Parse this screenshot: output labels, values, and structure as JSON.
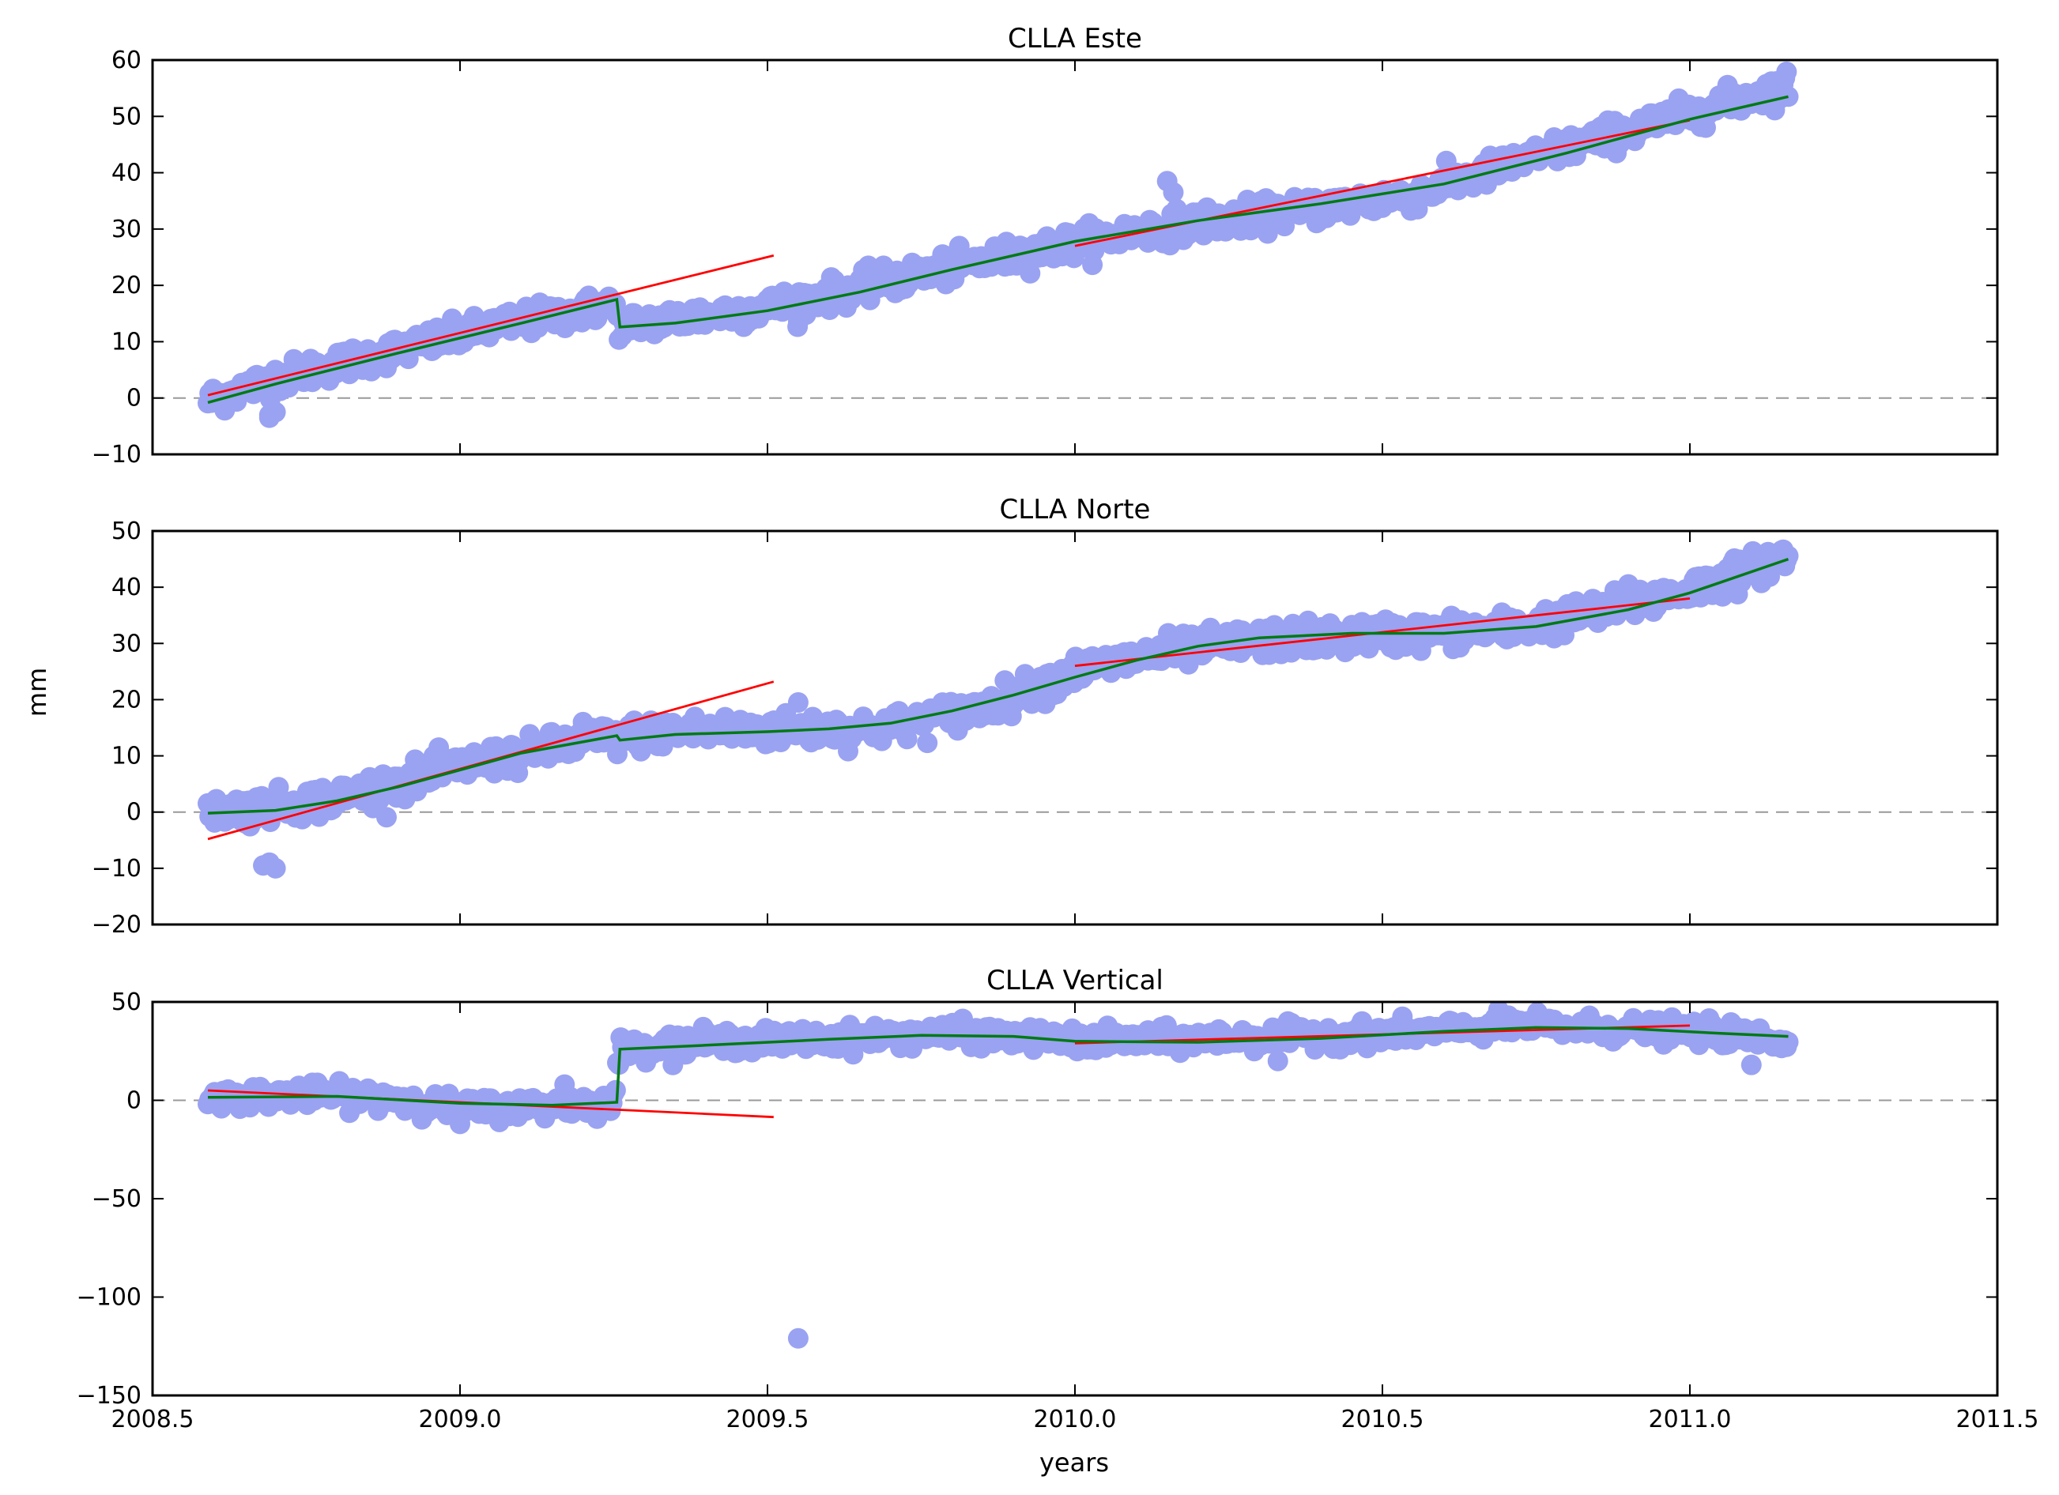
{
  "figure": {
    "xlabel": "years",
    "ylabel": "mm"
  },
  "colors": {
    "observations": "#9aa2f2",
    "linear_fit": "#ff0000",
    "smooth_fit": "#007a12",
    "zero_line": "#999999",
    "axes": "#000000"
  },
  "chart_data": [
    {
      "type": "scatter",
      "title": "CLLA Este",
      "xlabel": "",
      "ylabel": "",
      "xlim": [
        2008.5,
        2011.5
      ],
      "ylim": [
        -10,
        60
      ],
      "xticks": [
        2008.5,
        2009.0,
        2009.5,
        2010.0,
        2010.5,
        2011.0,
        2011.5
      ],
      "xtick_labels_visible": false,
      "yticks": [
        -10,
        0,
        10,
        20,
        30,
        40,
        50,
        60
      ],
      "ytick_labels": [
        "−10",
        "0",
        "10",
        "20",
        "30",
        "40",
        "50",
        "60"
      ],
      "zero_line": true,
      "grid": false,
      "observations": {
        "trend": [
          [
            2008.59,
            -0.5
          ],
          [
            2008.7,
            3.5
          ],
          [
            2008.9,
            8.5
          ],
          [
            2009.05,
            12.5
          ],
          [
            2009.25,
            16.5
          ],
          [
            2009.26,
            12.8
          ],
          [
            2009.5,
            16.0
          ],
          [
            2009.75,
            22.0
          ],
          [
            2010.0,
            27.5
          ],
          [
            2010.15,
            30.5
          ],
          [
            2010.35,
            33.0
          ],
          [
            2010.55,
            36.0
          ],
          [
            2010.8,
            44.5
          ],
          [
            2011.0,
            50.5
          ],
          [
            2011.16,
            55.5
          ]
        ],
        "scatter_mm": 1.3,
        "outliers": [
          [
            2008.69,
            -3.5
          ],
          [
            2008.7,
            -2.5
          ],
          [
            2008.69,
            -3.0
          ],
          [
            2010.15,
            38.5
          ],
          [
            2010.16,
            36.5
          ],
          [
            2009.55,
            13.5
          ]
        ]
      },
      "fits": [
        {
          "kind": "linear",
          "color": "red",
          "points": [
            [
              2008.59,
              0.5
            ],
            [
              2009.51,
              25.3
            ]
          ]
        },
        {
          "kind": "linear",
          "color": "red",
          "points": [
            [
              2010.0,
              27.0
            ],
            [
              2011.0,
              49.3
            ]
          ]
        },
        {
          "kind": "smooth",
          "color": "green",
          "points": [
            [
              2008.59,
              -0.8
            ],
            [
              2008.7,
              2.5
            ],
            [
              2008.9,
              8.0
            ],
            [
              2009.1,
              13.3
            ],
            [
              2009.255,
              17.5
            ],
            [
              2009.26,
              12.6
            ],
            [
              2009.35,
              13.3
            ],
            [
              2009.5,
              15.5
            ],
            [
              2009.65,
              18.8
            ],
            [
              2009.8,
              22.8
            ],
            [
              2010.0,
              27.8
            ],
            [
              2010.2,
              31.5
            ],
            [
              2010.4,
              34.5
            ],
            [
              2010.6,
              38.0
            ],
            [
              2010.8,
              43.5
            ],
            [
              2011.0,
              49.5
            ],
            [
              2011.16,
              53.5
            ]
          ]
        }
      ]
    },
    {
      "type": "scatter",
      "title": "CLLA Norte",
      "xlabel": "",
      "ylabel": "",
      "xlim": [
        2008.5,
        2011.5
      ],
      "ylim": [
        -20,
        50
      ],
      "xticks": [
        2008.5,
        2009.0,
        2009.5,
        2010.0,
        2010.5,
        2011.0,
        2011.5
      ],
      "xtick_labels_visible": false,
      "yticks": [
        -20,
        -10,
        0,
        10,
        20,
        30,
        40,
        50
      ],
      "ytick_labels": [
        "−20",
        "−10",
        "0",
        "10",
        "20",
        "30",
        "40",
        "50"
      ],
      "zero_line": true,
      "grid": false,
      "observations": {
        "trend": [
          [
            2008.59,
            0.0
          ],
          [
            2008.7,
            1.0
          ],
          [
            2008.8,
            2.5
          ],
          [
            2009.0,
            8.0
          ],
          [
            2009.2,
            12.5
          ],
          [
            2009.35,
            14.5
          ],
          [
            2009.5,
            14.5
          ],
          [
            2009.7,
            15.0
          ],
          [
            2009.85,
            18.5
          ],
          [
            2010.0,
            25.0
          ],
          [
            2010.15,
            28.5
          ],
          [
            2010.3,
            30.5
          ],
          [
            2010.5,
            31.5
          ],
          [
            2010.7,
            32.5
          ],
          [
            2010.85,
            35.5
          ],
          [
            2011.0,
            39.5
          ],
          [
            2011.16,
            45.5
          ]
        ],
        "scatter_mm": 1.4,
        "outliers": [
          [
            2008.69,
            -9.0
          ],
          [
            2008.7,
            -10.0
          ],
          [
            2008.68,
            -9.5
          ],
          [
            2009.55,
            19.5
          ],
          [
            2010.9,
            40.5
          ],
          [
            2009.2,
            16.0
          ]
        ]
      },
      "fits": [
        {
          "kind": "linear",
          "color": "red",
          "points": [
            [
              2008.59,
              -4.8
            ],
            [
              2009.51,
              23.2
            ]
          ]
        },
        {
          "kind": "linear",
          "color": "red",
          "points": [
            [
              2010.0,
              26.0
            ],
            [
              2011.0,
              38.0
            ]
          ]
        },
        {
          "kind": "smooth",
          "color": "green",
          "points": [
            [
              2008.59,
              -0.2
            ],
            [
              2008.7,
              0.3
            ],
            [
              2008.8,
              2.0
            ],
            [
              2008.9,
              4.5
            ],
            [
              2009.0,
              7.5
            ],
            [
              2009.1,
              10.5
            ],
            [
              2009.255,
              13.6
            ],
            [
              2009.26,
              12.8
            ],
            [
              2009.35,
              13.8
            ],
            [
              2009.5,
              14.3
            ],
            [
              2009.6,
              14.8
            ],
            [
              2009.7,
              15.8
            ],
            [
              2009.8,
              18.0
            ],
            [
              2009.9,
              20.8
            ],
            [
              2010.0,
              24.0
            ],
            [
              2010.1,
              27.0
            ],
            [
              2010.2,
              29.5
            ],
            [
              2010.3,
              31.0
            ],
            [
              2010.45,
              31.8
            ],
            [
              2010.6,
              31.8
            ],
            [
              2010.75,
              33.0
            ],
            [
              2010.9,
              36.0
            ],
            [
              2011.0,
              39.0
            ],
            [
              2011.16,
              45.0
            ]
          ]
        }
      ]
    },
    {
      "type": "scatter",
      "title": "CLLA Vertical",
      "xlabel": "years",
      "ylabel": "",
      "xlim": [
        2008.5,
        2011.5
      ],
      "ylim": [
        -150,
        50
      ],
      "xticks": [
        2008.5,
        2009.0,
        2009.5,
        2010.0,
        2010.5,
        2011.0,
        2011.5
      ],
      "xtick_labels": [
        "2008.5",
        "2009.0",
        "2009.5",
        "2010.0",
        "2010.5",
        "2011.0",
        "2011.5"
      ],
      "xtick_labels_visible": true,
      "yticks": [
        -150,
        -100,
        -50,
        0,
        50
      ],
      "ytick_labels": [
        "−150",
        "−100",
        "−50",
        "0",
        "50"
      ],
      "zero_line": true,
      "grid": false,
      "observations": {
        "trend": [
          [
            2008.59,
            1.0
          ],
          [
            2008.75,
            3.0
          ],
          [
            2008.9,
            1.0
          ],
          [
            2009.0,
            -4.0
          ],
          [
            2009.1,
            -3.5
          ],
          [
            2009.25,
            -1.0
          ],
          [
            2009.26,
            26.0
          ],
          [
            2009.4,
            30.0
          ],
          [
            2009.6,
            31.0
          ],
          [
            2009.8,
            34.0
          ],
          [
            2010.0,
            30.0
          ],
          [
            2010.2,
            31.0
          ],
          [
            2010.4,
            33.0
          ],
          [
            2010.6,
            35.0
          ],
          [
            2010.7,
            38.0
          ],
          [
            2010.9,
            36.0
          ],
          [
            2011.05,
            34.0
          ],
          [
            2011.16,
            30.0
          ]
        ],
        "scatter_mm": 2.8,
        "outliers": [
          [
            2009.55,
            -121.0
          ],
          [
            2010.33,
            20.0
          ],
          [
            2011.1,
            18.0
          ],
          [
            2009.17,
            8.0
          ],
          [
            2009.0,
            -12.0
          ]
        ]
      },
      "fits": [
        {
          "kind": "linear",
          "color": "red",
          "points": [
            [
              2008.59,
              5.0
            ],
            [
              2009.51,
              -8.5
            ]
          ]
        },
        {
          "kind": "linear",
          "color": "red",
          "points": [
            [
              2010.0,
              29.0
            ],
            [
              2011.0,
              38.0
            ]
          ]
        },
        {
          "kind": "smooth",
          "color": "green",
          "points": [
            [
              2008.59,
              1.5
            ],
            [
              2008.8,
              2.0
            ],
            [
              2009.0,
              -1.5
            ],
            [
              2009.15,
              -2.5
            ],
            [
              2009.255,
              -1.0
            ],
            [
              2009.26,
              26.0
            ],
            [
              2009.4,
              28.0
            ],
            [
              2009.6,
              31.0
            ],
            [
              2009.75,
              33.0
            ],
            [
              2009.9,
              32.5
            ],
            [
              2010.0,
              30.0
            ],
            [
              2010.2,
              29.5
            ],
            [
              2010.4,
              31.5
            ],
            [
              2010.6,
              35.0
            ],
            [
              2010.75,
              37.0
            ],
            [
              2010.9,
              36.5
            ],
            [
              2011.05,
              34.0
            ],
            [
              2011.16,
              32.5
            ]
          ]
        }
      ]
    }
  ]
}
